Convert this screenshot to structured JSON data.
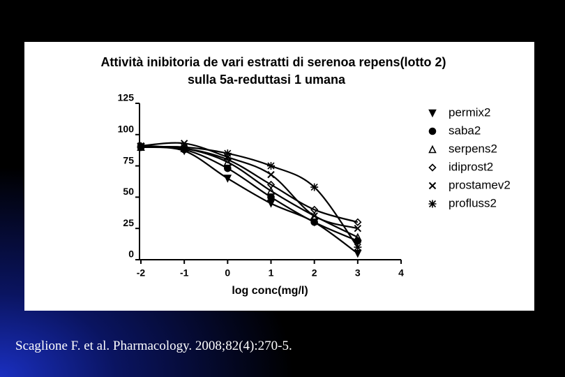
{
  "chart_data": {
    "type": "line",
    "title": "Attività inibitoria de vari estratti di serenoa repens(lotto 2)",
    "subtitle": "sulla 5a-reduttasi 1 umana",
    "x_label": "log conc(mg/l)",
    "x": [
      -2,
      -1,
      0,
      1,
      2,
      3
    ],
    "xlim": [
      -2,
      4
    ],
    "xticks": [
      -2,
      -1,
      0,
      1,
      2,
      3,
      4
    ],
    "ylim": [
      0,
      125
    ],
    "yticks": [
      0,
      25,
      50,
      75,
      100,
      125
    ],
    "color": "#000000",
    "series": [
      {
        "name": "permix2",
        "marker": "triangle-down",
        "values": [
          90,
          87,
          65,
          45,
          30,
          5
        ]
      },
      {
        "name": "saba2",
        "marker": "circle",
        "values": [
          90,
          88,
          73,
          50,
          30,
          15
        ]
      },
      {
        "name": "serpens2",
        "marker": "triangle",
        "values": [
          90,
          89,
          78,
          55,
          35,
          18
        ]
      },
      {
        "name": "idiprost2",
        "marker": "diamond",
        "values": [
          91,
          89,
          80,
          60,
          40,
          30
        ]
      },
      {
        "name": "prostamev2",
        "marker": "x",
        "values": [
          91,
          93,
          82,
          68,
          35,
          25
        ]
      },
      {
        "name": "profluss2",
        "marker": "asterisk",
        "values": [
          90,
          90,
          85,
          75,
          58,
          10
        ]
      }
    ]
  },
  "footer": "Scaglione F. et al. Pharmacology. 2008;82(4):270-5."
}
